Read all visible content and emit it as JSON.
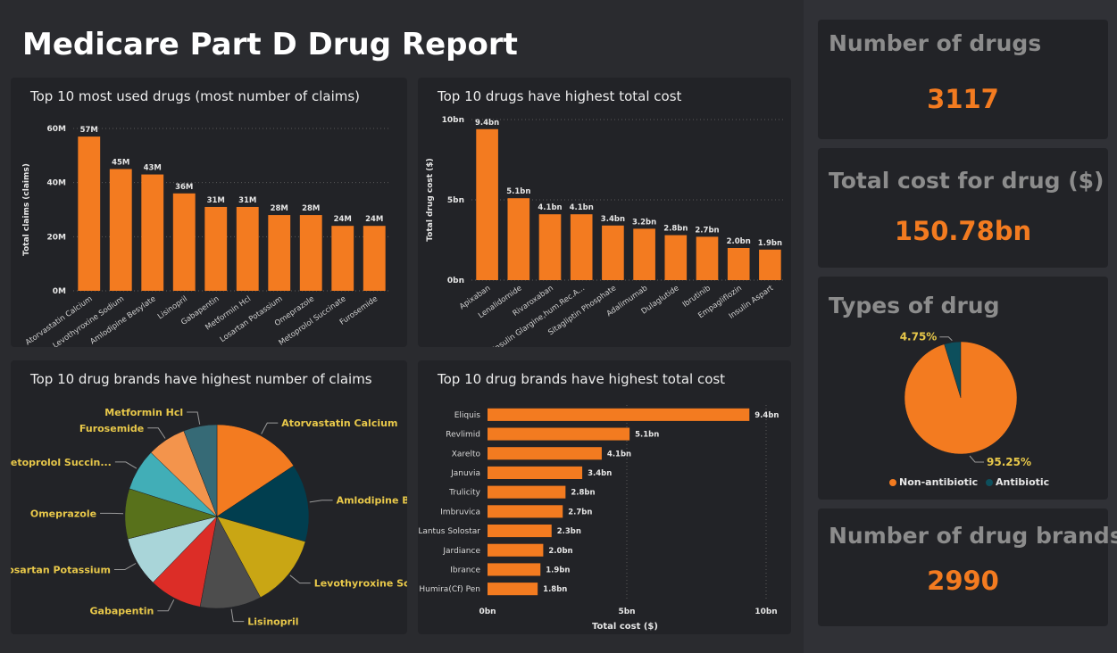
{
  "report_title": "Medicare Part D Drug Report",
  "colors": {
    "accent": "#f37b20",
    "panel": "#222327",
    "label_yellow": "#e8c84a"
  },
  "kpis": {
    "num_drugs_title": "Number of drugs",
    "num_drugs_value": "3117",
    "total_cost_title": "Total cost for drug ($)",
    "total_cost_value": "150.78bn",
    "types_title": "Types of drug",
    "num_brands_title": "Number of drug brands",
    "num_brands_value": "2990"
  },
  "chart_data": [
    {
      "id": "claims",
      "type": "bar",
      "title": "Top 10 most used drugs (most number of claims)",
      "ylabel": "Total claims (claims)",
      "ylim": [
        0,
        60
      ],
      "yticks": [
        "0M",
        "20M",
        "40M",
        "60M"
      ],
      "categories": [
        "Atorvastatin Calcium",
        "Levothyroxine Sodium",
        "Amlodipine Besylate",
        "Lisinopril",
        "Gabapentin",
        "Metformin Hcl",
        "Losartan Potassium",
        "Omeprazole",
        "Metoprolol Succinate",
        "Furosemide"
      ],
      "values": [
        57,
        45,
        43,
        36,
        31,
        31,
        28,
        28,
        24,
        24
      ],
      "labels": [
        "57M",
        "45M",
        "43M",
        "36M",
        "31M",
        "31M",
        "28M",
        "28M",
        "24M",
        "24M"
      ]
    },
    {
      "id": "cost",
      "type": "bar",
      "title": "Top 10 drugs have highest total cost",
      "ylabel": "Total drug cost ($)",
      "ylim": [
        0,
        10
      ],
      "yticks": [
        "0bn",
        "5bn",
        "10bn"
      ],
      "categories": [
        "Apixaban",
        "Lenalidomide",
        "Rivaroxaban",
        "Insulin Glargine,hum.Rec.A...",
        "Sitagliptin Phosphate",
        "Adalimumab",
        "Dulaglutide",
        "Ibrutinib",
        "Empagliflozin",
        "Insulin Aspart"
      ],
      "values": [
        9.4,
        5.1,
        4.1,
        4.1,
        3.4,
        3.2,
        2.8,
        2.7,
        2.0,
        1.9
      ],
      "labels": [
        "9.4bn",
        "5.1bn",
        "4.1bn",
        "4.1bn",
        "3.4bn",
        "3.2bn",
        "2.8bn",
        "2.7bn",
        "2.0bn",
        "1.9bn"
      ]
    },
    {
      "id": "brand_claims",
      "type": "pie",
      "title": "Top 10 drug brands have highest number of claims",
      "categories": [
        "Atorvastatin Calcium",
        "Amlodipine Bes...",
        "Levothyroxine Sodium",
        "Lisinopril",
        "Gabapentin",
        "Losartan Potassium",
        "Omeprazole",
        "Metoprolol Succin...",
        "Furosemide",
        "Metformin Hcl"
      ],
      "values": [
        16,
        14,
        13,
        11,
        9.5,
        9,
        9,
        7.5,
        7,
        6
      ],
      "colors": [
        "#f37b20",
        "#013e4f",
        "#c9a614",
        "#4d4d4d",
        "#dc2d27",
        "#a9d5d9",
        "#58711b",
        "#41aeb7",
        "#f3944c",
        "#366a76"
      ]
    },
    {
      "id": "brand_cost",
      "type": "bar",
      "orientation": "horizontal",
      "title": "Top 10 drug brands have highest total cost",
      "xlabel": "Total cost ($)",
      "xlim": [
        0,
        10
      ],
      "xticks": [
        "0bn",
        "5bn",
        "10bn"
      ],
      "categories": [
        "Eliquis",
        "Revlimid",
        "Xarelto",
        "Januvia",
        "Trulicity",
        "Imbruvica",
        "Lantus Solostar",
        "Jardiance",
        "Ibrance",
        "Humira(Cf) Pen"
      ],
      "values": [
        9.4,
        5.1,
        4.1,
        3.4,
        2.8,
        2.7,
        2.3,
        2.0,
        1.9,
        1.8
      ],
      "labels": [
        "9.4bn",
        "5.1bn",
        "4.1bn",
        "3.4bn",
        "2.8bn",
        "2.7bn",
        "2.3bn",
        "2.0bn",
        "1.9bn",
        "1.8bn"
      ]
    },
    {
      "id": "types",
      "type": "pie",
      "categories": [
        "Non-antibiotic",
        "Antibiotic"
      ],
      "values": [
        95.25,
        4.75
      ],
      "labels": [
        "95.25%",
        "4.75%"
      ],
      "colors": [
        "#f37b20",
        "#0d4f5c"
      ]
    }
  ]
}
